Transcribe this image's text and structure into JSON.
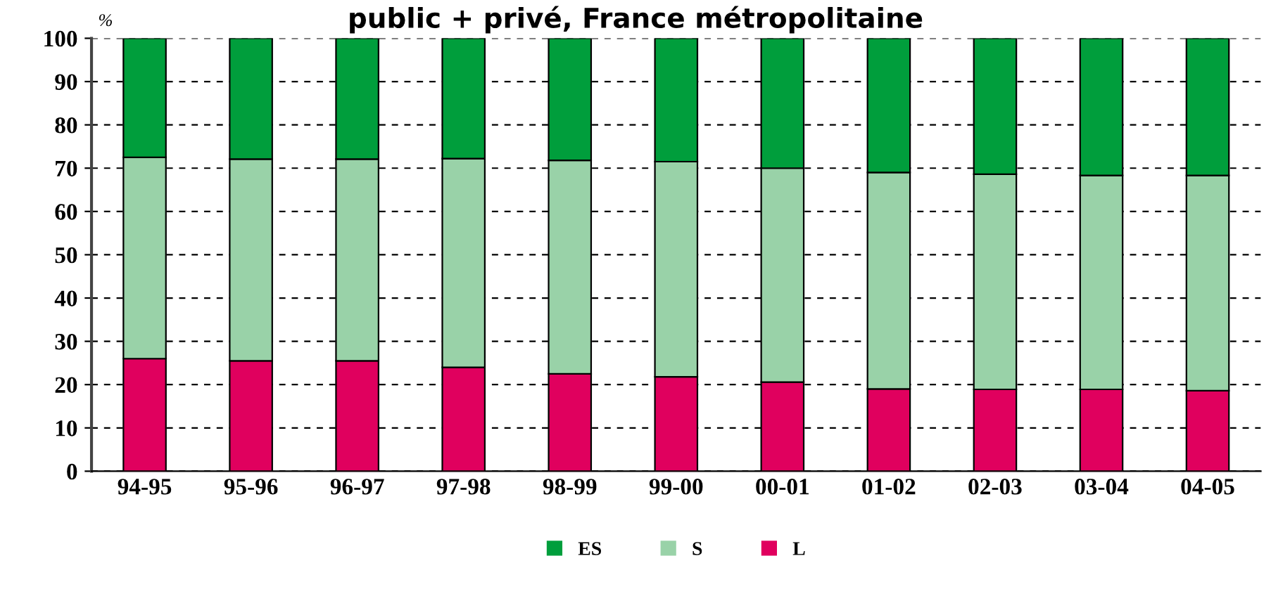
{
  "chart_data": {
    "type": "bar",
    "stacked": true,
    "title": "public + privé, France métropolitaine",
    "ylabel": "%",
    "categories": [
      "94-95",
      "95-96",
      "96-97",
      "97-98",
      "98-99",
      "99-00",
      "00-01",
      "01-02",
      "02-03",
      "03-04",
      "04-05"
    ],
    "series": [
      {
        "name": "L",
        "color": "#e0005e",
        "values": [
          26,
          25.5,
          25.5,
          24,
          22.5,
          21.8,
          20.6,
          19,
          18.9,
          18.9,
          18.6
        ]
      },
      {
        "name": "S",
        "color": "#99d2a8",
        "values": [
          46.5,
          46.6,
          46.6,
          48.2,
          49.3,
          49.7,
          49.4,
          50,
          49.7,
          49.4,
          49.7
        ]
      },
      {
        "name": "ES",
        "color": "#009e3c",
        "values": [
          27.5,
          27.9,
          27.9,
          27.8,
          28.2,
          28.5,
          30,
          31,
          31.4,
          31.7,
          31.7
        ]
      }
    ],
    "ylim": [
      0,
      100
    ],
    "yticks": [
      0,
      10,
      20,
      30,
      40,
      50,
      60,
      70,
      80,
      90,
      100
    ],
    "grid": "y",
    "legend": "bottom"
  }
}
